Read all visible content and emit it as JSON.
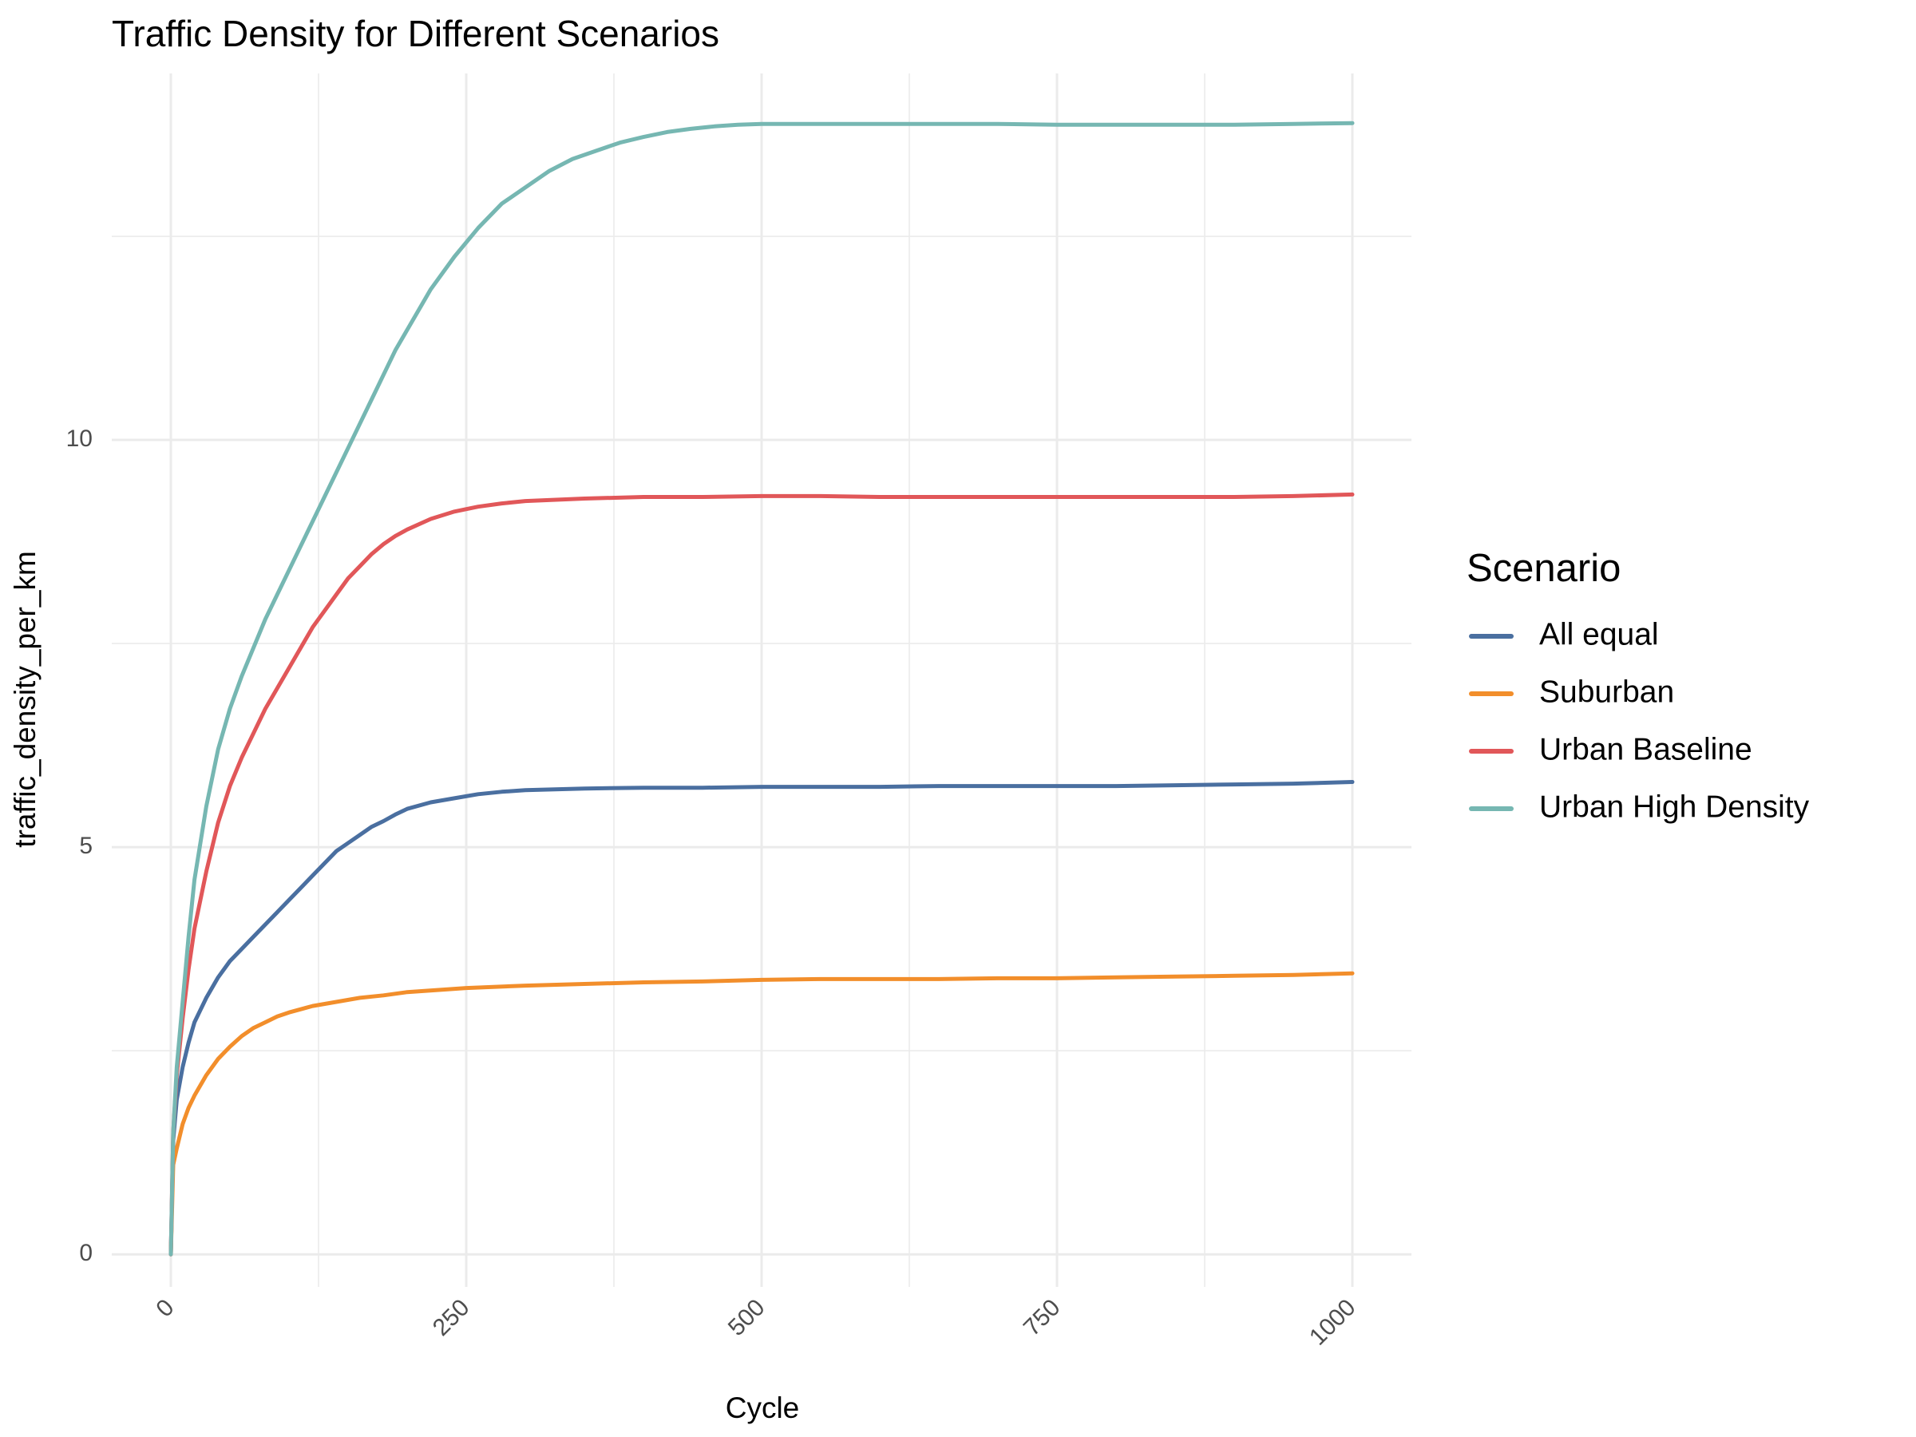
{
  "chart_data": {
    "type": "line",
    "title": "Traffic Density for Different Scenarios",
    "xlabel": "Cycle",
    "ylabel": "traffic_density_per_km",
    "xlim": [
      -50,
      1050
    ],
    "ylim": [
      -0.4,
      14.5
    ],
    "x_ticks": [
      0,
      250,
      500,
      750,
      1000
    ],
    "x_tick_labels": [
      "0",
      "250",
      "500",
      "750",
      "1000"
    ],
    "y_ticks": [
      0,
      5,
      10
    ],
    "y_tick_labels": [
      "0",
      "5",
      "10"
    ],
    "x_minor_ticks": [
      125,
      375,
      625,
      875
    ],
    "y_minor_ticks": [
      2.5,
      7.5,
      12.5
    ],
    "grid": true,
    "legend": {
      "title": "Scenario",
      "position": "right"
    },
    "series": [
      {
        "name": "All equal",
        "color": "#4a6fa0",
        "points": [
          [
            0,
            0
          ],
          [
            2,
            1.4
          ],
          [
            5,
            1.9
          ],
          [
            10,
            2.3
          ],
          [
            15,
            2.6
          ],
          [
            20,
            2.85
          ],
          [
            30,
            3.15
          ],
          [
            40,
            3.4
          ],
          [
            50,
            3.6
          ],
          [
            60,
            3.75
          ],
          [
            70,
            3.9
          ],
          [
            80,
            4.05
          ],
          [
            90,
            4.2
          ],
          [
            100,
            4.35
          ],
          [
            110,
            4.5
          ],
          [
            120,
            4.65
          ],
          [
            130,
            4.8
          ],
          [
            140,
            4.95
          ],
          [
            150,
            5.05
          ],
          [
            160,
            5.15
          ],
          [
            170,
            5.25
          ],
          [
            180,
            5.32
          ],
          [
            190,
            5.4
          ],
          [
            200,
            5.47
          ],
          [
            220,
            5.55
          ],
          [
            240,
            5.6
          ],
          [
            260,
            5.65
          ],
          [
            280,
            5.68
          ],
          [
            300,
            5.7
          ],
          [
            350,
            5.72
          ],
          [
            400,
            5.73
          ],
          [
            450,
            5.73
          ],
          [
            500,
            5.74
          ],
          [
            550,
            5.74
          ],
          [
            600,
            5.74
          ],
          [
            650,
            5.75
          ],
          [
            700,
            5.75
          ],
          [
            750,
            5.75
          ],
          [
            800,
            5.75
          ],
          [
            850,
            5.76
          ],
          [
            900,
            5.77
          ],
          [
            950,
            5.78
          ],
          [
            1000,
            5.8
          ]
        ]
      },
      {
        "name": "Suburban",
        "color": "#f28e2b",
        "points": [
          [
            0,
            0
          ],
          [
            2,
            1.1
          ],
          [
            5,
            1.3
          ],
          [
            10,
            1.6
          ],
          [
            15,
            1.8
          ],
          [
            20,
            1.95
          ],
          [
            30,
            2.2
          ],
          [
            40,
            2.4
          ],
          [
            50,
            2.55
          ],
          [
            60,
            2.68
          ],
          [
            70,
            2.78
          ],
          [
            80,
            2.85
          ],
          [
            90,
            2.92
          ],
          [
            100,
            2.97
          ],
          [
            120,
            3.05
          ],
          [
            140,
            3.1
          ],
          [
            160,
            3.15
          ],
          [
            180,
            3.18
          ],
          [
            200,
            3.22
          ],
          [
            250,
            3.27
          ],
          [
            300,
            3.3
          ],
          [
            350,
            3.32
          ],
          [
            400,
            3.34
          ],
          [
            450,
            3.35
          ],
          [
            500,
            3.37
          ],
          [
            550,
            3.38
          ],
          [
            600,
            3.38
          ],
          [
            650,
            3.38
          ],
          [
            700,
            3.39
          ],
          [
            750,
            3.39
          ],
          [
            800,
            3.4
          ],
          [
            850,
            3.41
          ],
          [
            900,
            3.42
          ],
          [
            950,
            3.43
          ],
          [
            1000,
            3.45
          ]
        ]
      },
      {
        "name": "Urban Baseline",
        "color": "#e15759",
        "points": [
          [
            0,
            0
          ],
          [
            2,
            1.5
          ],
          [
            5,
            2.2
          ],
          [
            10,
            2.9
          ],
          [
            15,
            3.5
          ],
          [
            20,
            4.0
          ],
          [
            30,
            4.7
          ],
          [
            40,
            5.3
          ],
          [
            50,
            5.75
          ],
          [
            60,
            6.1
          ],
          [
            70,
            6.4
          ],
          [
            80,
            6.7
          ],
          [
            90,
            6.95
          ],
          [
            100,
            7.2
          ],
          [
            110,
            7.45
          ],
          [
            120,
            7.7
          ],
          [
            130,
            7.9
          ],
          [
            140,
            8.1
          ],
          [
            150,
            8.3
          ],
          [
            160,
            8.45
          ],
          [
            170,
            8.6
          ],
          [
            180,
            8.72
          ],
          [
            190,
            8.82
          ],
          [
            200,
            8.9
          ],
          [
            220,
            9.03
          ],
          [
            240,
            9.12
          ],
          [
            260,
            9.18
          ],
          [
            280,
            9.22
          ],
          [
            300,
            9.25
          ],
          [
            350,
            9.28
          ],
          [
            400,
            9.3
          ],
          [
            450,
            9.3
          ],
          [
            500,
            9.31
          ],
          [
            550,
            9.31
          ],
          [
            600,
            9.3
          ],
          [
            650,
            9.3
          ],
          [
            700,
            9.3
          ],
          [
            750,
            9.3
          ],
          [
            800,
            9.3
          ],
          [
            850,
            9.3
          ],
          [
            900,
            9.3
          ],
          [
            950,
            9.31
          ],
          [
            1000,
            9.33
          ]
        ]
      },
      {
        "name": "Urban High Density",
        "color": "#76b7b2",
        "points": [
          [
            0,
            0
          ],
          [
            2,
            1.5
          ],
          [
            5,
            2.3
          ],
          [
            10,
            3.1
          ],
          [
            15,
            3.9
          ],
          [
            20,
            4.6
          ],
          [
            30,
            5.5
          ],
          [
            40,
            6.2
          ],
          [
            50,
            6.7
          ],
          [
            60,
            7.1
          ],
          [
            70,
            7.45
          ],
          [
            80,
            7.8
          ],
          [
            90,
            8.1
          ],
          [
            100,
            8.4
          ],
          [
            110,
            8.7
          ],
          [
            120,
            9.0
          ],
          [
            130,
            9.3
          ],
          [
            140,
            9.6
          ],
          [
            150,
            9.9
          ],
          [
            160,
            10.2
          ],
          [
            170,
            10.5
          ],
          [
            180,
            10.8
          ],
          [
            190,
            11.1
          ],
          [
            200,
            11.35
          ],
          [
            220,
            11.85
          ],
          [
            240,
            12.25
          ],
          [
            260,
            12.6
          ],
          [
            280,
            12.9
          ],
          [
            300,
            13.1
          ],
          [
            320,
            13.3
          ],
          [
            340,
            13.45
          ],
          [
            360,
            13.55
          ],
          [
            380,
            13.65
          ],
          [
            400,
            13.72
          ],
          [
            420,
            13.78
          ],
          [
            440,
            13.82
          ],
          [
            460,
            13.85
          ],
          [
            480,
            13.87
          ],
          [
            500,
            13.88
          ],
          [
            550,
            13.88
          ],
          [
            600,
            13.88
          ],
          [
            650,
            13.88
          ],
          [
            700,
            13.88
          ],
          [
            750,
            13.87
          ],
          [
            800,
            13.87
          ],
          [
            850,
            13.87
          ],
          [
            900,
            13.87
          ],
          [
            950,
            13.88
          ],
          [
            1000,
            13.89
          ]
        ]
      }
    ]
  }
}
